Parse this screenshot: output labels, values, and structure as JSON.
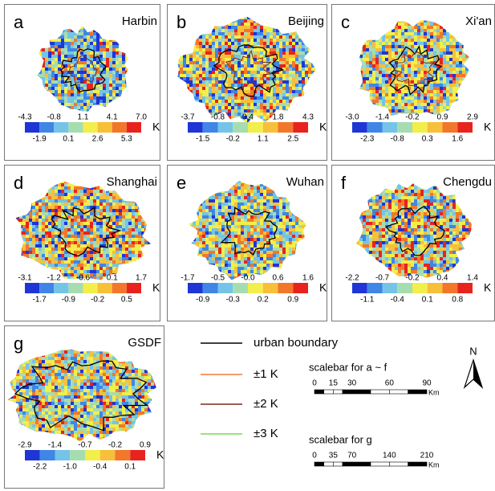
{
  "panels": [
    {
      "label": "a",
      "city": "Harbin",
      "ticks_top": [
        "-4.3",
        "-0.8",
        "1.1",
        "4.1",
        "7.0"
      ],
      "ticks_bottom": [
        "-1.9",
        "0.1",
        "2.6",
        "5.3"
      ],
      "unit": "K"
    },
    {
      "label": "b",
      "city": "Beijing",
      "ticks_top": [
        "-3.7",
        "-0.8",
        "0.4",
        "1.8",
        "4.3"
      ],
      "ticks_bottom": [
        "-1.5",
        "-0.2",
        "1.1",
        "2.5"
      ],
      "unit": "K"
    },
    {
      "label": "c",
      "city": "Xi'an",
      "ticks_top": [
        "-3.0",
        "-1.4",
        "-0.2",
        "0.9",
        "2.9"
      ],
      "ticks_bottom": [
        "-2.3",
        "-0.8",
        "0.3",
        "1.6"
      ],
      "unit": "K"
    },
    {
      "label": "d",
      "city": "Shanghai",
      "ticks_top": [
        "-3.1",
        "-1.2",
        "-0.6",
        "0.1",
        "1.7"
      ],
      "ticks_bottom": [
        "-1.7",
        "-0.9",
        "-0.2",
        "0.5"
      ],
      "unit": "K"
    },
    {
      "label": "e",
      "city": "Wuhan",
      "ticks_top": [
        "-1.7",
        "-0.5",
        "-0.0",
        "0.6",
        "1.6"
      ],
      "ticks_bottom": [
        "-0.9",
        "-0.3",
        "0.2",
        "0.9"
      ],
      "unit": "K"
    },
    {
      "label": "f",
      "city": "Chengdu",
      "ticks_top": [
        "-2.2",
        "-0.7",
        "-0.2",
        "0.4",
        "1.4"
      ],
      "ticks_bottom": [
        "-1.1",
        "-0.4",
        "0.1",
        "0.8"
      ],
      "unit": "K"
    },
    {
      "label": "g",
      "city": "GSDF",
      "ticks_top": [
        "-2.9",
        "-1.4",
        "-0.7",
        "-0.2",
        "0.9"
      ],
      "ticks_bottom": [
        "-2.2",
        "-1.0",
        "-0.4",
        "0.1"
      ],
      "unit": "K"
    }
  ],
  "legend": [
    {
      "label": "urban boundary",
      "color": "#000000"
    },
    {
      "label": "±1 K",
      "color": "#f07a3a"
    },
    {
      "label": "±2 K",
      "color": "#7a2a1a"
    },
    {
      "label": "±3 K",
      "color": "#7ad65a"
    }
  ],
  "scalebars": [
    {
      "title": "scalebar for a ~ f",
      "ticks": [
        0,
        15,
        30,
        60,
        90
      ],
      "unit": "Km"
    },
    {
      "title": "scalebar for g",
      "ticks": [
        0,
        35,
        70,
        140,
        210
      ],
      "unit": "Km"
    }
  ],
  "north": "N"
}
